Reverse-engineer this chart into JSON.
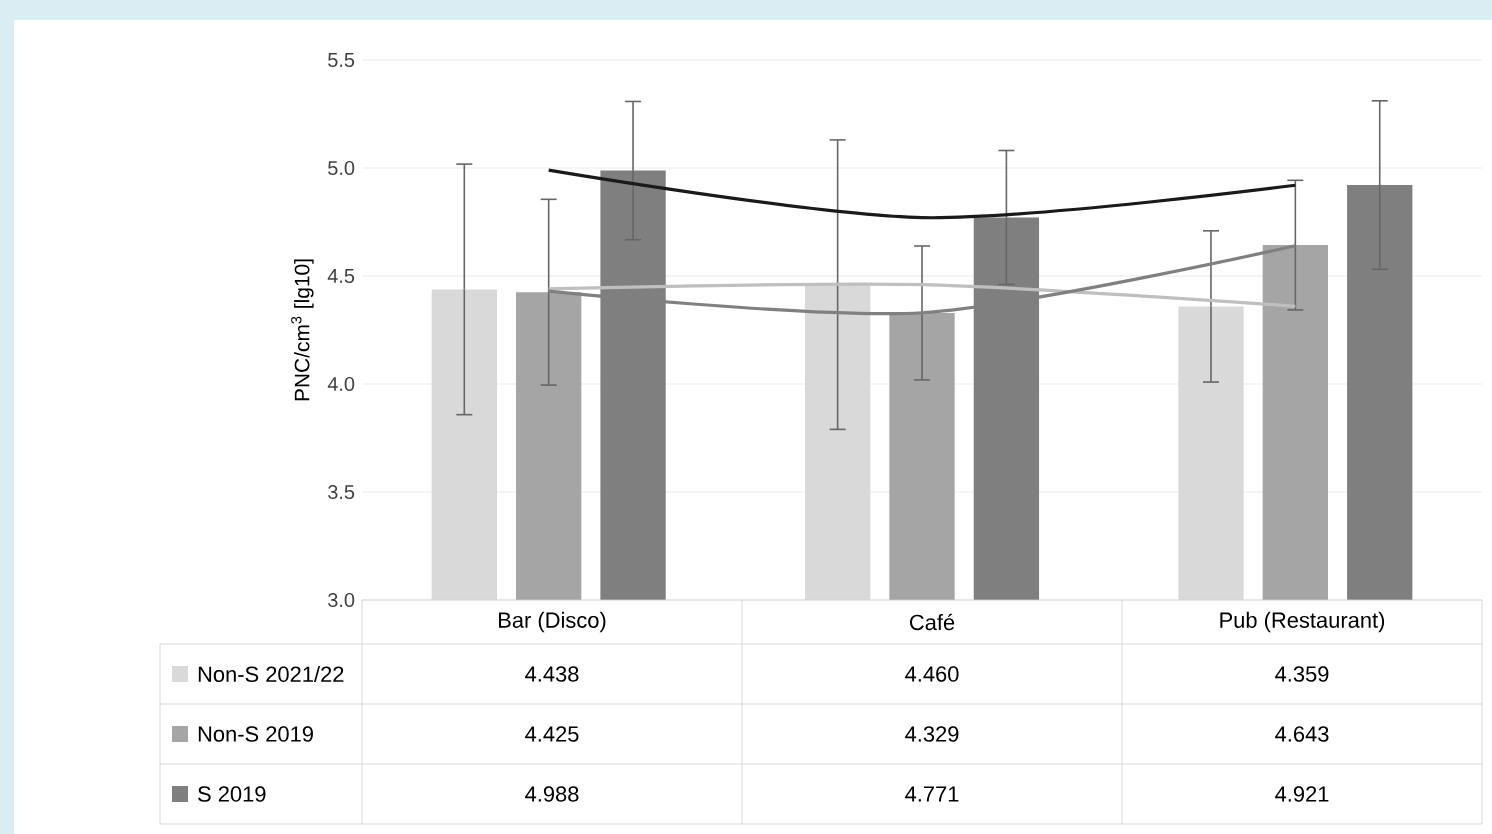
{
  "chart_data": {
    "type": "bar",
    "ylabel": "PNC/cm$^{3}$ [lg10]",
    "categories": [
      "Bar (Disco)",
      "Café",
      "Pub (Restaurant)"
    ],
    "series": [
      {
        "name": "Non-S 2021/22",
        "color": "#d9d9d9",
        "values": [
          4.438,
          4.46,
          4.359
        ],
        "value_labels": [
          "4.438",
          "4.460",
          "4.359"
        ],
        "errors": [
          0.58,
          0.67,
          0.35
        ]
      },
      {
        "name": "Non-S 2019",
        "color": "#a5a5a5",
        "values": [
          4.425,
          4.329,
          4.643
        ],
        "value_labels": [
          "4.425",
          "4.329",
          "4.643"
        ],
        "errors": [
          0.43,
          0.31,
          0.3
        ]
      },
      {
        "name": "S 2019",
        "color": "#7f7f7f",
        "values": [
          4.988,
          4.771,
          4.921
        ],
        "value_labels": [
          "4.988",
          "4.771",
          "4.921"
        ],
        "errors": [
          0.32,
          0.31,
          0.39
        ]
      },
      {
        "type": "line",
        "color": "#bfbfbf",
        "values": [
          4.44,
          4.46,
          4.36
        ]
      },
      {
        "type": "line",
        "color": "#808080",
        "values": [
          4.43,
          4.33,
          4.64
        ]
      },
      {
        "type": "line",
        "color": "#1a1a1a",
        "values": [
          4.99,
          4.77,
          4.92
        ]
      }
    ],
    "ylim": [
      3.0,
      5.5
    ],
    "yticks": [
      {
        "value": 3.0,
        "label": "3.0"
      },
      {
        "value": 3.5,
        "label": "3.5"
      },
      {
        "value": 4.0,
        "label": "4.0"
      },
      {
        "value": 4.5,
        "label": "4.5"
      },
      {
        "value": 5.0,
        "label": "5.0"
      },
      {
        "value": 5.5,
        "label": "5.5"
      }
    ],
    "grid": "y",
    "legend": "bottom",
    "tick_labels": "y"
  }
}
